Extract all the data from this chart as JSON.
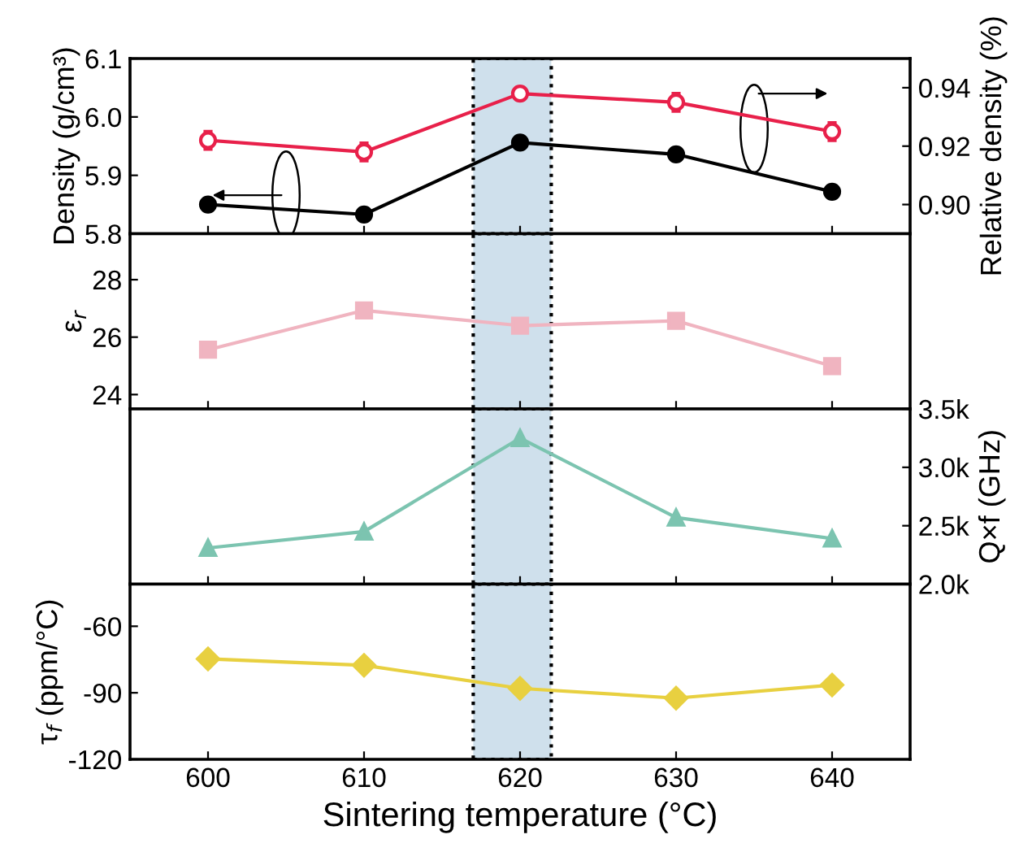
{
  "chart_data": [
    {
      "type": "line",
      "x": [
        600,
        610,
        620,
        630,
        640
      ],
      "xlim": [
        595,
        645
      ],
      "xticks": [
        600,
        610,
        620,
        630,
        640
      ],
      "ylabel": "Density (g/cm³)",
      "y2label": "Relative density (%)",
      "ylim": [
        5.8,
        6.1
      ],
      "yticks": [
        5.8,
        5.9,
        {
          "value": 6.0,
          "label": "6.0"
        },
        6.1
      ],
      "y2lim": [
        0.89,
        0.95
      ],
      "y2ticks": [
        {
          "value": 0.9,
          "label": "0.90"
        },
        0.92,
        0.94
      ],
      "tick_labels": "y",
      "grid": false,
      "legend": false,
      "series": [
        {
          "color": "#000000",
          "marker": "circle",
          "values": [
            5.85,
            5.833,
            5.956,
            5.936,
            5.872
          ],
          "errors": [
            0.01,
            0.01,
            0.008,
            0.008,
            0.008
          ]
        },
        {
          "color": "#e8204a",
          "marker": "circle",
          "axis": "y2",
          "values": [
            0.922,
            0.918,
            0.938,
            0.935,
            0.925
          ],
          "errors": [
            0.003,
            0.003,
            0.002,
            0.003,
            0.003
          ]
        }
      ],
      "bands": [
        {
          "axis": "x",
          "from": 617,
          "to": 622,
          "color": "#cfe0ec"
        }
      ]
    },
    {
      "type": "line",
      "x": [
        600,
        610,
        620,
        630,
        640
      ],
      "xlim": [
        595,
        645
      ],
      "xticks": [
        600,
        610,
        620,
        630,
        640
      ],
      "ylabel": "ε$_{r}$",
      "ylim": [
        23.5,
        29.6
      ],
      "yticks": [
        24,
        26,
        28
      ],
      "tick_labels": "y",
      "grid": false,
      "legend": false,
      "series": [
        {
          "color": "#f0b4c0",
          "marker": "square",
          "values": [
            25.56,
            26.93,
            26.4,
            26.57,
            24.99
          ]
        }
      ],
      "bands": [
        {
          "axis": "x",
          "from": 617,
          "to": 622,
          "color": "#cfe0ec"
        }
      ]
    },
    {
      "type": "line",
      "x": [
        600,
        610,
        620,
        630,
        640
      ],
      "xlim": [
        595,
        645
      ],
      "xticks": [
        600,
        610,
        620,
        630,
        640
      ],
      "y2label": "Q×f (GHz)",
      "y2lim": [
        2000,
        3500
      ],
      "y2ticks": [
        {
          "value": 2000,
          "label": "2.0k"
        },
        {
          "value": 2500,
          "label": "2.5k"
        },
        {
          "value": 3000,
          "label": "3.0k"
        },
        {
          "value": 3500,
          "label": "3.5k"
        }
      ],
      "tick_labels": "y",
      "grid": false,
      "legend": false,
      "series": [
        {
          "color": "#7cc4b0",
          "marker": "triangle",
          "axis": "y2",
          "values": [
            2310,
            2450,
            3250,
            2570,
            2390
          ]
        }
      ],
      "bands": [
        {
          "axis": "x",
          "from": 617,
          "to": 622,
          "color": "#cfe0ec"
        }
      ]
    },
    {
      "type": "line",
      "x": [
        600,
        610,
        620,
        630,
        640
      ],
      "xlim": [
        595,
        645
      ],
      "xticks": [
        600,
        610,
        620,
        630,
        640
      ],
      "xlabel": "Sintering temperature (°C)",
      "ylabel": "τ$_{f}$ (ppm/°C)",
      "ylim": [
        -120,
        -41
      ],
      "yticks": [
        -120,
        -90,
        -60
      ],
      "grid": false,
      "legend": false,
      "series": [
        {
          "color": "#e8d040",
          "marker": "diamond",
          "values": [
            -74.7,
            -77.6,
            -88,
            -92.4,
            -86.5
          ]
        }
      ],
      "bands": [
        {
          "axis": "x",
          "from": 617,
          "to": 622,
          "color": "#cfe0ec"
        }
      ]
    }
  ]
}
